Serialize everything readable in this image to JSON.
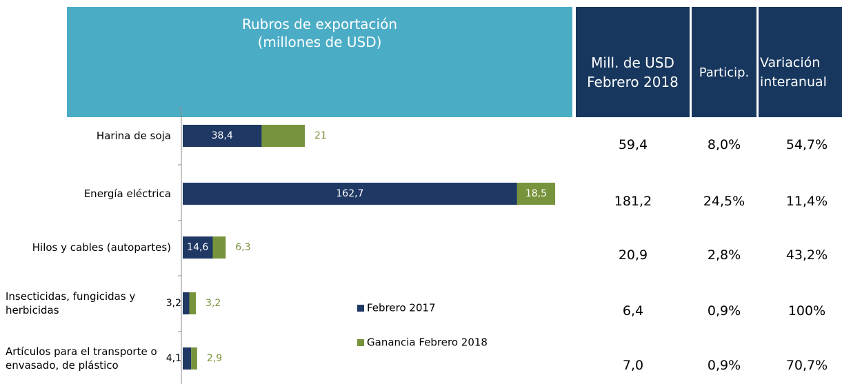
{
  "chart_data": {
    "type": "bar",
    "orientation": "horizontal",
    "stacked": true,
    "categories": [
      "Harina de soja",
      "Energía eléctrica",
      "Hilos y cables (autopartes)",
      "Insecticidas, fungicidas y herbicidas",
      "Artículos para el transporte o envasado, de plástico"
    ],
    "series": [
      {
        "name": "Febrero 2017",
        "color": "#1f3864",
        "values": [
          38.4,
          162.7,
          14.6,
          3.2,
          4.1
        ],
        "value_labels": [
          "38,4",
          "162,7",
          "14,6",
          "3,2",
          "4,1"
        ]
      },
      {
        "name": "Ganancia Febrero 2018",
        "color": "#77933c",
        "values": [
          21,
          18.5,
          6.3,
          3.2,
          2.9
        ],
        "value_labels": [
          "21",
          "18,5",
          "6,3",
          "3,2",
          "2,9"
        ]
      }
    ],
    "xlim": [
      0,
      181.2
    ],
    "legend": "center"
  },
  "table": {
    "header": [
      "Rubros de exportación (millones de USD)",
      "Mill. de USD Febrero 2018",
      "Particip.",
      "Variación interanual"
    ],
    "rows": [
      [
        "59,4",
        "8,0%",
        "54,7%"
      ],
      [
        "181,2",
        "24,5%",
        "11,4%"
      ],
      [
        "20,9",
        "2,8%",
        "43,2%"
      ],
      [
        "6,4",
        "0,9%",
        "100%"
      ],
      [
        "7,0",
        "0,9%",
        "70,7%"
      ]
    ]
  }
}
